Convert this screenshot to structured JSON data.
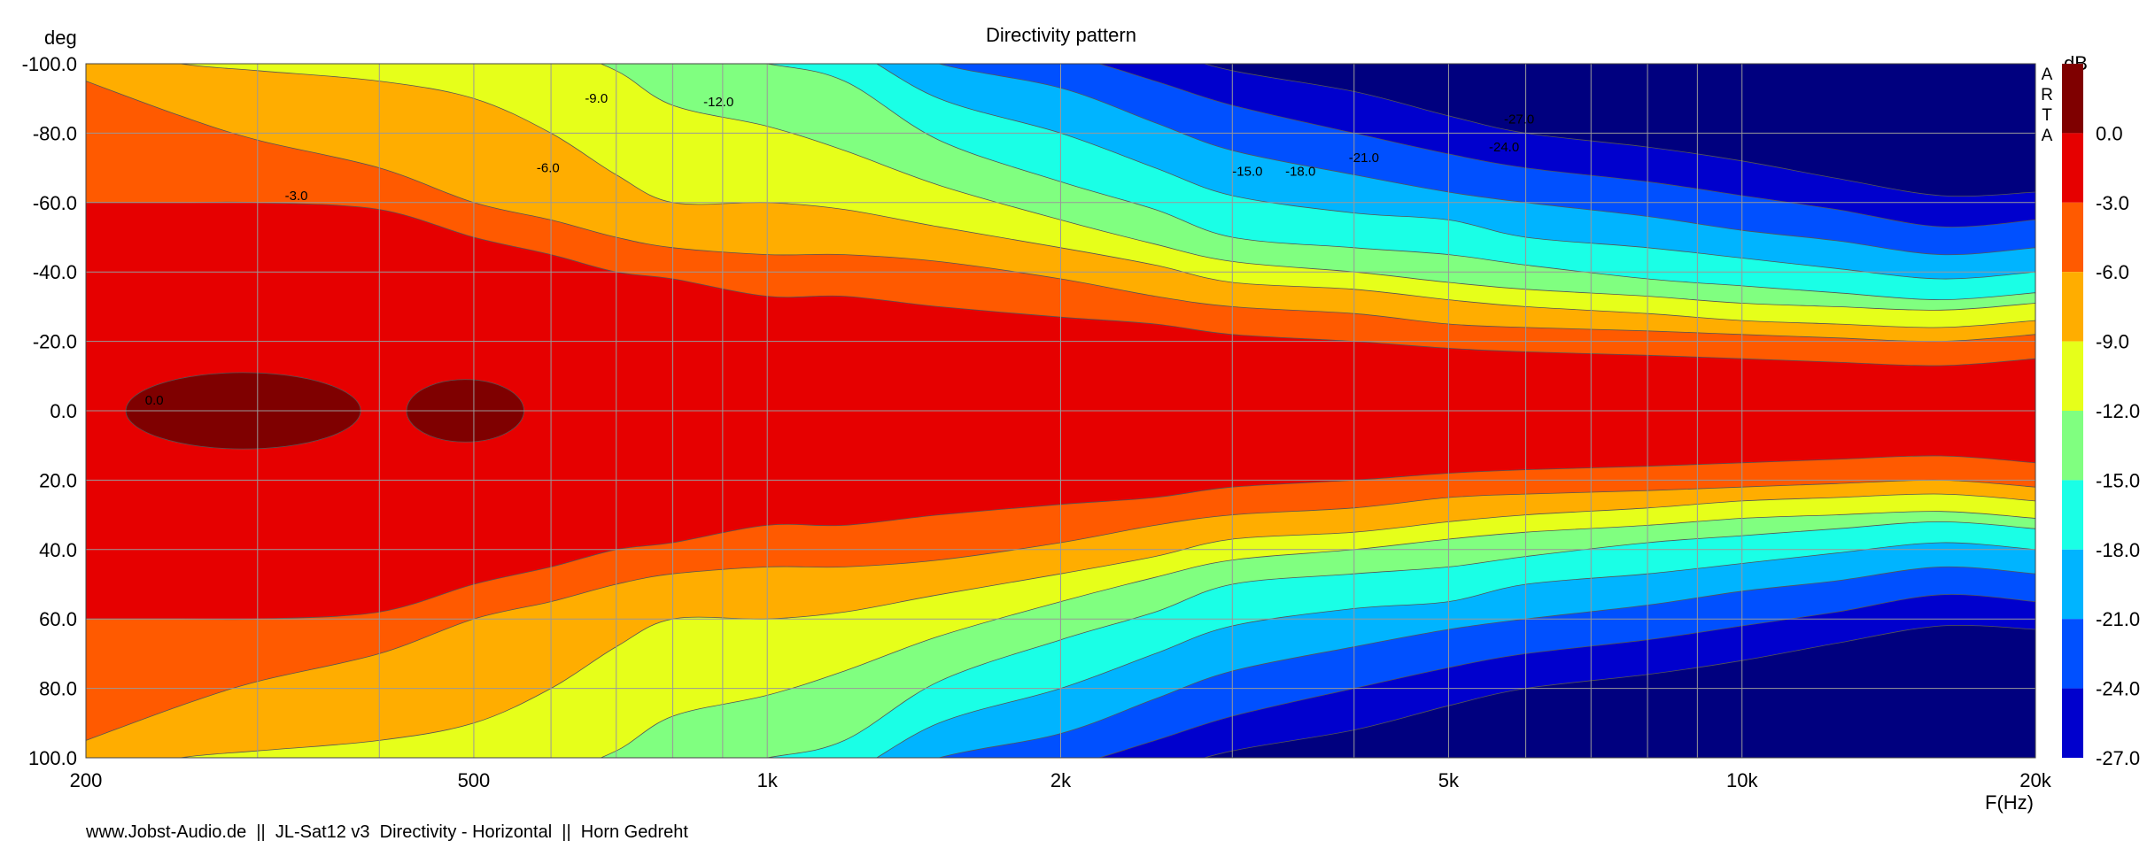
{
  "chart_data": {
    "type": "heatmap",
    "title": "Directivity pattern",
    "ylabel": "deg",
    "xlabel": "F(Hz)",
    "colorbar_label": "dB",
    "x_scale": "log",
    "xlim": [
      200,
      20000
    ],
    "ylim": [
      -100,
      100
    ],
    "x_ticks": [
      {
        "value": 200,
        "label": "200"
      },
      {
        "value": 500,
        "label": "500"
      },
      {
        "value": 1000,
        "label": "1k"
      },
      {
        "value": 2000,
        "label": "2k"
      },
      {
        "value": 5000,
        "label": "5k"
      },
      {
        "value": 10000,
        "label": "10k"
      },
      {
        "value": 20000,
        "label": "20k"
      }
    ],
    "y_ticks": [
      {
        "value": -100,
        "label": "-100.0"
      },
      {
        "value": -80,
        "label": "-80.0"
      },
      {
        "value": -60,
        "label": "-60.0"
      },
      {
        "value": -40,
        "label": "-40.0"
      },
      {
        "value": -20,
        "label": "-20.0"
      },
      {
        "value": 0,
        "label": "0.0"
      },
      {
        "value": 20,
        "label": "20.0"
      },
      {
        "value": 40,
        "label": "40.0"
      },
      {
        "value": 60,
        "label": "60.0"
      },
      {
        "value": 80,
        "label": "80.0"
      },
      {
        "value": 100,
        "label": "100.0"
      }
    ],
    "grid": true,
    "levels": [
      {
        "value": 0.0,
        "label": "0.0",
        "color": "#7f0000"
      },
      {
        "value": -3.0,
        "label": "-3.0",
        "color": "#e60000"
      },
      {
        "value": -6.0,
        "label": "-6.0",
        "color": "#ff5a00"
      },
      {
        "value": -9.0,
        "label": "-9.0",
        "color": "#ffad00"
      },
      {
        "value": -12.0,
        "label": "-12.0",
        "color": "#e6ff1a"
      },
      {
        "value": -15.0,
        "label": "-15.0",
        "color": "#80ff80"
      },
      {
        "value": -18.0,
        "label": "-18.0",
        "color": "#1affe6"
      },
      {
        "value": -21.0,
        "label": "-21.0",
        "color": "#00b4ff"
      },
      {
        "value": -24.0,
        "label": "-24.0",
        "color": "#0050ff"
      },
      {
        "value": -27.0,
        "label": "-27.0",
        "color": "#0000cd"
      }
    ],
    "floor_color": "#00007f",
    "boundaries_deg_from_axis": {
      "freqs": [
        200,
        250,
        300,
        400,
        500,
        600,
        700,
        800,
        1000,
        1200,
        1500,
        2000,
        2500,
        3000,
        4000,
        5000,
        6000,
        8000,
        10000,
        12500,
        16000,
        20000
      ],
      "minus3": [
        60,
        60,
        60,
        58,
        50,
        45,
        40,
        38,
        33,
        33,
        30,
        27,
        25,
        22,
        20,
        18,
        17,
        16,
        15,
        14,
        13,
        15
      ],
      "minus6": [
        95,
        85,
        78,
        70,
        60,
        55,
        50,
        47,
        45,
        45,
        43,
        38,
        33,
        30,
        28,
        25,
        24,
        23,
        22,
        21,
        20,
        22
      ],
      "minus9": [
        105,
        100,
        98,
        95,
        90,
        80,
        68,
        60,
        60,
        58,
        53,
        47,
        42,
        37,
        35,
        32,
        30,
        28,
        26,
        25,
        24,
        26
      ],
      "minus12": [
        110,
        110,
        110,
        110,
        110,
        105,
        98,
        88,
        82,
        75,
        65,
        55,
        48,
        43,
        40,
        37,
        35,
        33,
        31,
        30,
        29,
        31
      ],
      "minus15": [
        110,
        110,
        110,
        110,
        110,
        110,
        110,
        104,
        100,
        95,
        78,
        66,
        58,
        50,
        47,
        45,
        42,
        38,
        36,
        34,
        32,
        34
      ],
      "minus18": [
        110,
        110,
        110,
        110,
        110,
        110,
        110,
        110,
        110,
        105,
        90,
        80,
        70,
        62,
        57,
        55,
        50,
        47,
        44,
        41,
        38,
        40
      ],
      "minus21": [
        110,
        110,
        110,
        110,
        110,
        110,
        110,
        110,
        110,
        110,
        100,
        93,
        83,
        75,
        68,
        63,
        60,
        56,
        52,
        49,
        45,
        47
      ],
      "minus24": [
        110,
        110,
        110,
        110,
        110,
        110,
        110,
        110,
        110,
        110,
        110,
        103,
        95,
        88,
        80,
        74,
        70,
        66,
        62,
        58,
        53,
        55
      ],
      "minus27": [
        110,
        110,
        110,
        110,
        110,
        110,
        110,
        110,
        110,
        110,
        110,
        110,
        104,
        98,
        92,
        85,
        80,
        76,
        72,
        67,
        62,
        63
      ]
    },
    "peak_regions": [
      {
        "f_center": 290,
        "deg_center": 0,
        "f_half_width_oct": 0.4,
        "deg_half_height": 11
      },
      {
        "f_center": 490,
        "deg_center": 0,
        "f_half_width_oct": 0.2,
        "deg_half_height": 9
      }
    ],
    "annotations": [
      {
        "text": "0.0",
        "freq": 230,
        "deg": -3
      },
      {
        "text": "-3.0",
        "freq": 320,
        "deg": -62
      },
      {
        "text": "-6.0",
        "freq": 580,
        "deg": -70
      },
      {
        "text": "-9.0",
        "freq": 650,
        "deg": -90
      },
      {
        "text": "-12.0",
        "freq": 860,
        "deg": -89
      },
      {
        "text": "-15.0",
        "freq": 3000,
        "deg": -69
      },
      {
        "text": "-18.0",
        "freq": 3400,
        "deg": -69
      },
      {
        "text": "-21.0",
        "freq": 3950,
        "deg": -73
      },
      {
        "text": "-24.0",
        "freq": 5500,
        "deg": -76
      },
      {
        "text": "-27.0",
        "freq": 5700,
        "deg": -84
      }
    ],
    "brand_letters": [
      "A",
      "R",
      "T",
      "A"
    ],
    "footer": "www.Jobst-Audio.de  ||  JL-Sat12 v3  Directivity - Horizontal  ||  Horn Gedreht"
  }
}
